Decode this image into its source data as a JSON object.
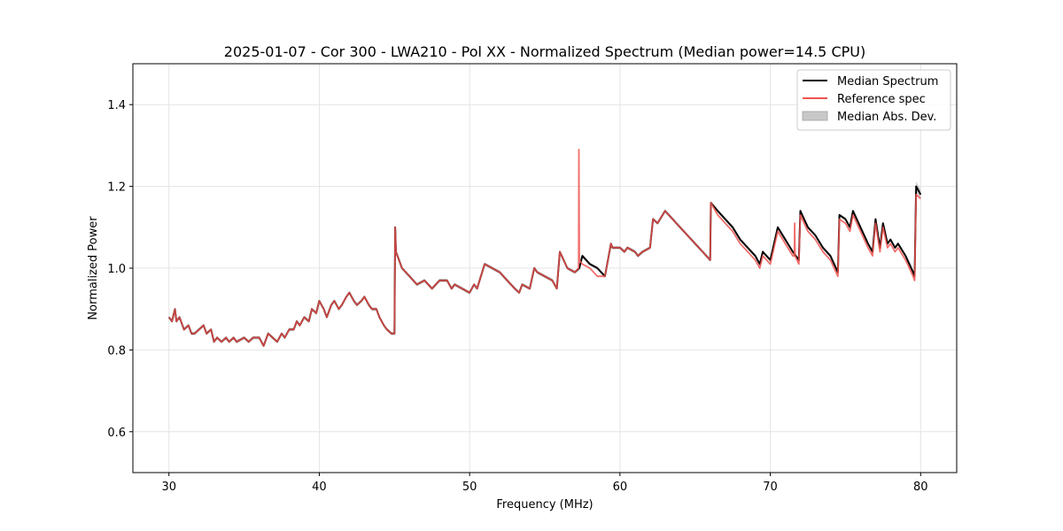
{
  "chart_data": {
    "type": "line",
    "title": "2025-01-07 - Cor 300 - LWA210 - Pol XX - Normalized Spectrum (Median power=14.5 CPU)",
    "xlabel": "Frequency (MHz)",
    "ylabel": "Normalized Power",
    "xlim": [
      27.6,
      82.4
    ],
    "ylim": [
      0.5,
      1.5
    ],
    "xticks": [
      30,
      40,
      50,
      60,
      70,
      80
    ],
    "yticks": [
      0.6,
      0.8,
      1.0,
      1.2,
      1.4
    ],
    "xtick_labels": [
      "30",
      "40",
      "50",
      "60",
      "70",
      "80"
    ],
    "ytick_labels": [
      "0.6",
      "0.8",
      "1.0",
      "1.2",
      "1.4"
    ],
    "grid": true,
    "legend_position": "top-right",
    "series": [
      {
        "name": "Median Spectrum",
        "color": "#000000",
        "x": [
          30.0,
          30.2,
          30.4,
          30.5,
          30.7,
          30.9,
          31.0,
          31.3,
          31.5,
          31.7,
          32.0,
          32.3,
          32.5,
          32.8,
          33.0,
          33.2,
          33.5,
          33.8,
          34.0,
          34.3,
          34.5,
          35.0,
          35.3,
          35.6,
          36.0,
          36.3,
          36.6,
          36.9,
          37.2,
          37.5,
          37.7,
          38.0,
          38.3,
          38.5,
          38.7,
          39.0,
          39.3,
          39.5,
          39.8,
          40.0,
          40.3,
          40.5,
          40.8,
          41.0,
          41.3,
          41.5,
          41.8,
          42.0,
          42.3,
          42.5,
          42.8,
          43.0,
          43.3,
          43.5,
          43.8,
          44.0,
          44.3,
          44.5,
          44.8,
          45.0,
          45.05,
          45.1,
          45.5,
          46.0,
          46.5,
          47.0,
          47.5,
          48.0,
          48.5,
          48.8,
          49.0,
          49.5,
          50.0,
          50.3,
          50.5,
          51.0,
          51.5,
          52.0,
          52.5,
          53.0,
          53.3,
          53.5,
          54.0,
          54.3,
          54.5,
          55.0,
          55.5,
          55.8,
          56.0,
          56.5,
          57.0,
          57.3,
          57.5,
          58.0,
          58.5,
          59.0,
          59.4,
          59.5,
          60.0,
          60.3,
          60.5,
          61.0,
          61.2,
          61.5,
          62.0,
          62.2,
          62.5,
          63.0,
          63.5,
          64.0,
          64.5,
          65.0,
          65.5,
          66.0,
          66.05,
          66.5,
          67.0,
          67.5,
          68.0,
          68.5,
          69.0,
          69.3,
          69.5,
          70.0,
          70.5,
          71.0,
          71.5,
          71.9,
          72.0,
          72.5,
          73.0,
          73.5,
          74.0,
          74.5,
          74.6,
          75.0,
          75.3,
          75.5,
          76.0,
          76.5,
          76.8,
          77.0,
          77.3,
          77.5,
          77.8,
          78.0,
          78.3,
          78.5,
          79.0,
          79.5,
          79.6,
          79.7,
          80.0
        ],
        "y": [
          0.88,
          0.87,
          0.9,
          0.87,
          0.88,
          0.86,
          0.85,
          0.86,
          0.84,
          0.84,
          0.85,
          0.86,
          0.84,
          0.85,
          0.82,
          0.83,
          0.82,
          0.83,
          0.82,
          0.83,
          0.82,
          0.83,
          0.82,
          0.83,
          0.83,
          0.81,
          0.84,
          0.83,
          0.82,
          0.84,
          0.83,
          0.85,
          0.85,
          0.87,
          0.86,
          0.88,
          0.87,
          0.9,
          0.89,
          0.92,
          0.9,
          0.88,
          0.91,
          0.92,
          0.9,
          0.91,
          0.93,
          0.94,
          0.92,
          0.91,
          0.92,
          0.93,
          0.91,
          0.9,
          0.9,
          0.88,
          0.86,
          0.85,
          0.84,
          0.84,
          1.1,
          1.04,
          1.0,
          0.98,
          0.96,
          0.97,
          0.95,
          0.97,
          0.97,
          0.95,
          0.96,
          0.95,
          0.94,
          0.96,
          0.95,
          1.01,
          1.0,
          0.99,
          0.97,
          0.95,
          0.94,
          0.96,
          0.95,
          1.0,
          0.99,
          0.98,
          0.97,
          0.95,
          1.04,
          1.0,
          0.99,
          1.0,
          1.03,
          1.01,
          1.0,
          0.98,
          1.06,
          1.05,
          1.05,
          1.04,
          1.05,
          1.04,
          1.03,
          1.04,
          1.05,
          1.12,
          1.11,
          1.14,
          1.12,
          1.1,
          1.08,
          1.06,
          1.04,
          1.02,
          1.16,
          1.14,
          1.12,
          1.1,
          1.07,
          1.05,
          1.03,
          1.01,
          1.04,
          1.02,
          1.1,
          1.07,
          1.04,
          1.02,
          1.14,
          1.1,
          1.08,
          1.05,
          1.03,
          0.99,
          1.13,
          1.12,
          1.1,
          1.14,
          1.1,
          1.06,
          1.04,
          1.12,
          1.05,
          1.11,
          1.06,
          1.07,
          1.05,
          1.06,
          1.03,
          0.99,
          0.98,
          1.2,
          1.18
        ],
        "mad": 0.004
      },
      {
        "name": "Reference spec",
        "color": "#ef5350",
        "x": [
          30.0,
          30.2,
          30.4,
          30.5,
          30.7,
          30.9,
          31.0,
          31.3,
          31.5,
          31.7,
          32.0,
          32.3,
          32.5,
          32.8,
          33.0,
          33.2,
          33.5,
          33.8,
          34.0,
          34.3,
          34.5,
          35.0,
          35.3,
          35.6,
          36.0,
          36.3,
          36.6,
          36.9,
          37.2,
          37.5,
          37.7,
          38.0,
          38.3,
          38.5,
          38.7,
          39.0,
          39.3,
          39.5,
          39.8,
          40.0,
          40.3,
          40.5,
          40.8,
          41.0,
          41.3,
          41.5,
          41.8,
          42.0,
          42.3,
          42.5,
          42.8,
          43.0,
          43.3,
          43.5,
          43.8,
          44.0,
          44.3,
          44.5,
          44.8,
          45.0,
          45.05,
          45.1,
          45.5,
          46.0,
          46.5,
          47.0,
          47.5,
          48.0,
          48.5,
          48.8,
          49.0,
          49.5,
          50.0,
          50.3,
          50.5,
          51.0,
          51.5,
          52.0,
          52.5,
          53.0,
          53.3,
          53.5,
          54.0,
          54.3,
          54.5,
          55.0,
          55.5,
          55.8,
          56.0,
          56.5,
          57.0,
          57.25,
          57.27,
          57.3,
          57.5,
          58.0,
          58.5,
          59.0,
          59.4,
          59.5,
          60.0,
          60.3,
          60.5,
          61.0,
          61.2,
          61.5,
          62.0,
          62.2,
          62.5,
          63.0,
          63.5,
          64.0,
          64.5,
          65.0,
          65.5,
          66.0,
          66.05,
          66.5,
          67.0,
          67.5,
          68.0,
          68.5,
          69.0,
          69.3,
          69.5,
          70.0,
          70.5,
          71.0,
          71.5,
          71.6,
          71.62,
          71.65,
          71.9,
          72.0,
          72.5,
          73.0,
          73.5,
          74.0,
          74.5,
          74.6,
          75.0,
          75.3,
          75.5,
          76.0,
          76.5,
          76.8,
          77.0,
          77.3,
          77.5,
          77.8,
          78.0,
          78.3,
          78.5,
          79.0,
          79.5,
          79.6,
          79.7,
          80.0
        ],
        "y": [
          0.88,
          0.87,
          0.9,
          0.87,
          0.88,
          0.86,
          0.85,
          0.86,
          0.84,
          0.84,
          0.85,
          0.86,
          0.84,
          0.85,
          0.82,
          0.83,
          0.82,
          0.83,
          0.82,
          0.83,
          0.82,
          0.83,
          0.82,
          0.83,
          0.83,
          0.81,
          0.84,
          0.83,
          0.82,
          0.84,
          0.83,
          0.85,
          0.85,
          0.87,
          0.86,
          0.88,
          0.87,
          0.9,
          0.89,
          0.92,
          0.9,
          0.88,
          0.91,
          0.92,
          0.9,
          0.91,
          0.93,
          0.94,
          0.92,
          0.91,
          0.92,
          0.93,
          0.91,
          0.9,
          0.9,
          0.88,
          0.86,
          0.85,
          0.84,
          0.84,
          1.1,
          1.04,
          1.0,
          0.98,
          0.96,
          0.97,
          0.95,
          0.97,
          0.97,
          0.95,
          0.96,
          0.95,
          0.94,
          0.96,
          0.95,
          1.01,
          1.0,
          0.99,
          0.97,
          0.95,
          0.94,
          0.96,
          0.95,
          1.0,
          0.99,
          0.98,
          0.97,
          0.95,
          1.04,
          1.0,
          0.99,
          1.0,
          1.29,
          1.02,
          1.01,
          1.0,
          0.98,
          0.98,
          1.06,
          1.05,
          1.05,
          1.04,
          1.05,
          1.04,
          1.03,
          1.04,
          1.05,
          1.12,
          1.11,
          1.14,
          1.12,
          1.1,
          1.08,
          1.06,
          1.04,
          1.02,
          1.16,
          1.13,
          1.11,
          1.09,
          1.06,
          1.04,
          1.02,
          1.0,
          1.03,
          1.01,
          1.09,
          1.06,
          1.03,
          1.03,
          1.11,
          1.03,
          1.01,
          1.13,
          1.09,
          1.07,
          1.04,
          1.02,
          0.98,
          1.12,
          1.11,
          1.09,
          1.13,
          1.09,
          1.05,
          1.03,
          1.11,
          1.04,
          1.1,
          1.05,
          1.06,
          1.04,
          1.05,
          1.02,
          0.98,
          0.97,
          1.18,
          1.17
        ]
      }
    ],
    "legend": [
      {
        "label": "Median Spectrum",
        "kind": "line",
        "color": "#000000"
      },
      {
        "label": "Reference spec",
        "kind": "line",
        "color": "#ef5350"
      },
      {
        "label": "Median Abs. Dev.",
        "kind": "patch",
        "color": "#c8c8c8"
      }
    ]
  }
}
